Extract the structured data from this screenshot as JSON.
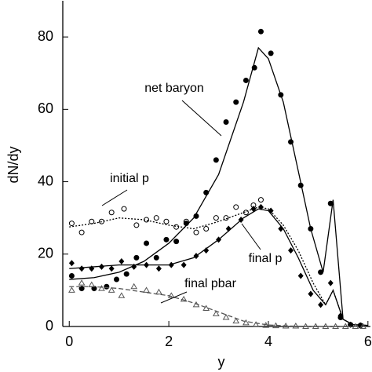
{
  "chart_data": {
    "type": "scatter-with-curves",
    "xlabel": "y",
    "ylabel": "dN/dy",
    "xlim": [
      -0.13,
      6.05
    ],
    "ylim": [
      0,
      90
    ],
    "xticks": [
      0,
      2,
      4,
      6
    ],
    "yticks": [
      0,
      20,
      40,
      60,
      80
    ],
    "series": [
      {
        "name": "net baryon",
        "marker": "filled-circle",
        "line_style": "solid",
        "color": "#000000",
        "x": [
          0.05,
          0.25,
          0.5,
          0.75,
          0.95,
          1.15,
          1.35,
          1.55,
          1.75,
          1.95,
          2.15,
          2.35,
          2.55,
          2.75,
          2.95,
          3.15,
          3.35,
          3.55,
          3.72,
          3.85,
          4.05,
          4.25,
          4.45,
          4.65,
          4.85,
          5.05,
          5.25,
          5.45,
          5.65,
          5.85
        ],
        "values": [
          14,
          10.5,
          10.5,
          11,
          13,
          14.5,
          19,
          23,
          19,
          24,
          23.5,
          28.5,
          30.5,
          37,
          46,
          56.5,
          62,
          68,
          71.5,
          81.5,
          75.5,
          64,
          51,
          39,
          27,
          15,
          34,
          2.5,
          0.5,
          0.3
        ],
        "line_x": [
          0,
          0.5,
          1,
          1.5,
          2,
          2.5,
          3,
          3.5,
          3.8,
          4,
          4.3,
          4.6,
          4.85,
          5.1,
          5.3,
          5.5,
          5.7,
          6
        ],
        "line_values": [
          13,
          13.5,
          15,
          18,
          23,
          30,
          42,
          62,
          77,
          74,
          62,
          43,
          27,
          15,
          35,
          2,
          0.5,
          0.3
        ]
      },
      {
        "name": "initial p",
        "marker": "open-circle",
        "line_style": "dotted",
        "color": "#000000",
        "x": [
          0.05,
          0.25,
          0.45,
          0.65,
          0.85,
          1.1,
          1.35,
          1.55,
          1.75,
          1.95,
          2.15,
          2.35,
          2.55,
          2.75,
          2.95,
          3.15,
          3.35,
          3.55,
          3.7,
          3.85
        ],
        "values": [
          28.5,
          26,
          29,
          29,
          31.5,
          32.5,
          28,
          29.5,
          30,
          29,
          27.5,
          29,
          26,
          27,
          30,
          30,
          33,
          31.5,
          33.5,
          35
        ],
        "line_x": [
          0,
          0.5,
          1,
          1.5,
          2,
          2.5,
          3,
          3.5,
          3.8,
          4,
          4.3,
          4.6,
          4.9,
          5.15,
          5.3,
          5.5
        ],
        "line_values": [
          27.5,
          28.5,
          30,
          29.5,
          28,
          27,
          29,
          31.5,
          33,
          32.5,
          28,
          21,
          12,
          6,
          10,
          2
        ]
      },
      {
        "name": "final p",
        "marker": "diamond",
        "line_style": "solid",
        "color": "#000000",
        "x": [
          0.05,
          0.25,
          0.45,
          0.65,
          0.85,
          1.05,
          1.3,
          1.55,
          1.8,
          2.05,
          2.3,
          2.55,
          2.75,
          3.0,
          3.2,
          3.45,
          3.7,
          3.85,
          4.05,
          4.25,
          4.45,
          4.65,
          4.85,
          5.05,
          5.25,
          5.45,
          5.65,
          5.85
        ],
        "values": [
          17.5,
          16,
          16,
          16.5,
          16,
          18,
          16.5,
          17,
          16,
          17,
          17,
          19.5,
          21,
          24,
          27,
          29.5,
          32.5,
          33,
          32,
          27,
          21,
          14,
          9,
          6,
          12,
          3,
          0.5,
          0.3
        ],
        "line_x": [
          0,
          0.5,
          1,
          1.5,
          2,
          2.5,
          3,
          3.5,
          3.8,
          4,
          4.3,
          4.6,
          4.9,
          5.15,
          5.3,
          5.5,
          5.7,
          6
        ],
        "line_values": [
          16,
          16.5,
          17,
          17,
          17,
          19,
          24,
          30,
          32.5,
          32,
          27,
          19,
          10,
          6,
          10,
          2,
          0.5,
          0.3
        ]
      },
      {
        "name": "final pbar",
        "marker": "open-triangle",
        "line_style": "dashed",
        "color": "#555555",
        "x": [
          0.05,
          0.25,
          0.45,
          0.65,
          0.85,
          1.05,
          1.3,
          1.55,
          1.8,
          2.05,
          2.3,
          2.55,
          2.75,
          2.95,
          3.15,
          3.35,
          3.55,
          3.75,
          3.95,
          4.15,
          4.35,
          4.55,
          4.75,
          4.95,
          5.15,
          5.35,
          5.55,
          5.75,
          5.9
        ],
        "values": [
          10,
          12,
          11.5,
          10.5,
          10,
          8.5,
          11,
          10,
          9.5,
          8.5,
          7.5,
          6,
          5,
          3.5,
          2.5,
          1.5,
          1,
          0.5,
          0.3,
          0.2,
          0.1,
          0.1,
          0,
          0,
          0,
          0,
          0,
          0,
          0
        ],
        "line_x": [
          0,
          0.5,
          1,
          1.5,
          2,
          2.5,
          3,
          3.5,
          4,
          4.5,
          5,
          6
        ],
        "line_values": [
          11,
          11,
          10.5,
          9.5,
          8.5,
          6.5,
          4,
          1.5,
          0.4,
          0.1,
          0,
          0
        ]
      }
    ]
  }
}
